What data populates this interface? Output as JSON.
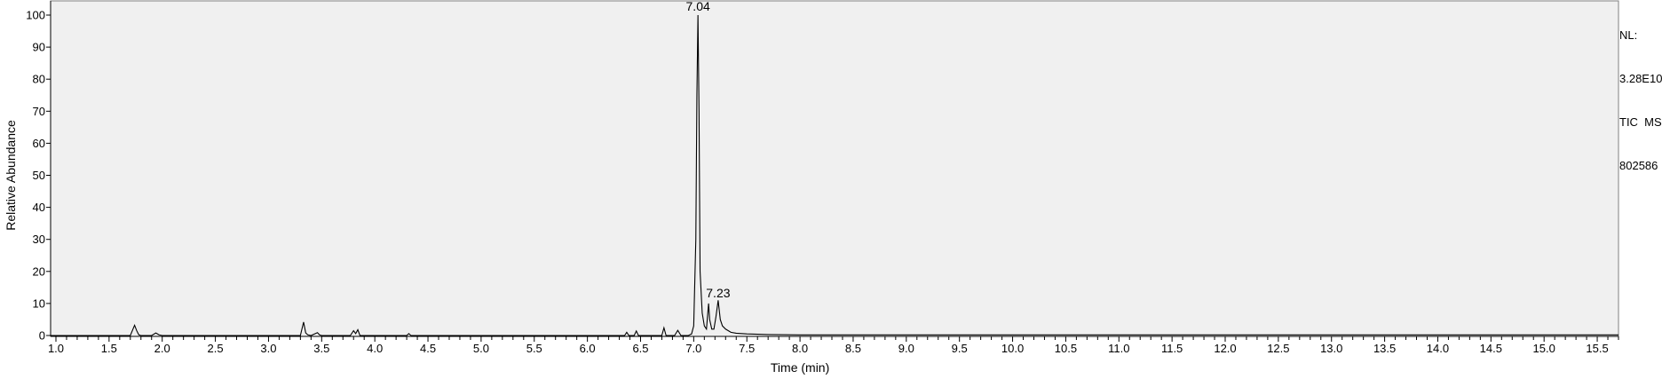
{
  "chart_data": {
    "type": "line",
    "xlabel": "Time (min)",
    "ylabel": "Relative Abundance",
    "xlim": [
      0.95,
      15.7
    ],
    "ylim": [
      0,
      101
    ],
    "x_ticks": [
      "1.0",
      "1.5",
      "2.0",
      "2.5",
      "3.0",
      "3.5",
      "4.0",
      "4.5",
      "5.0",
      "5.5",
      "6.0",
      "6.5",
      "7.0",
      "7.5",
      "8.0",
      "8.5",
      "9.0",
      "9.5",
      "10.0",
      "10.5",
      "11.0",
      "11.5",
      "12.0",
      "12.5",
      "13.0",
      "13.5",
      "14.0",
      "14.5",
      "15.0",
      "15.5"
    ],
    "y_ticks": [
      "0",
      "10",
      "20",
      "30",
      "40",
      "50",
      "60",
      "70",
      "80",
      "90",
      "100"
    ],
    "grid": false,
    "background": "#f0f0f0",
    "line_color": "#000000",
    "peak_labels": [
      {
        "x": 7.04,
        "y": 100,
        "text": "7.04"
      },
      {
        "x": 7.23,
        "y": 10.5,
        "text": "7.23"
      }
    ],
    "series": [
      {
        "x": [
          0.95,
          1.7,
          1.74,
          1.76,
          1.78,
          1.8,
          1.9,
          1.94,
          1.97,
          2.0,
          3.3,
          3.33,
          3.35,
          3.37,
          3.4,
          3.46,
          3.48,
          3.5,
          3.77,
          3.8,
          3.82,
          3.84,
          3.86,
          4.3,
          4.32,
          4.34,
          6.35,
          6.37,
          6.39,
          6.44,
          6.46,
          6.48,
          6.7,
          6.72,
          6.74,
          6.82,
          6.85,
          6.88,
          6.95,
          6.98,
          7.0,
          7.02,
          7.03,
          7.04,
          7.05,
          7.06,
          7.08,
          7.1,
          7.12,
          7.14,
          7.15,
          7.17,
          7.19,
          7.21,
          7.23,
          7.25,
          7.27,
          7.3,
          7.35,
          7.4,
          7.5,
          7.7,
          8.0,
          15.7
        ],
        "y": [
          0,
          0,
          3.2,
          1.5,
          0.2,
          0,
          0,
          0.8,
          0.2,
          0,
          0,
          4.2,
          0.8,
          0.2,
          0,
          0.9,
          0.2,
          0,
          0,
          1.5,
          0.6,
          1.8,
          0,
          0,
          0.6,
          0,
          0,
          1.0,
          0,
          0,
          1.4,
          0,
          0,
          2.4,
          0,
          0,
          1.6,
          0,
          0,
          0.5,
          3,
          30,
          75,
          100,
          70,
          20,
          7,
          3,
          2,
          10,
          5,
          2,
          2,
          6,
          11,
          5,
          3,
          2,
          1,
          0.7,
          0.5,
          0.3,
          0.2,
          0.2
        ]
      }
    ]
  },
  "info_panel": {
    "line1": "NL:",
    "line2": "3.28E10",
    "line3": "TIC  MS",
    "line4": "802586"
  }
}
